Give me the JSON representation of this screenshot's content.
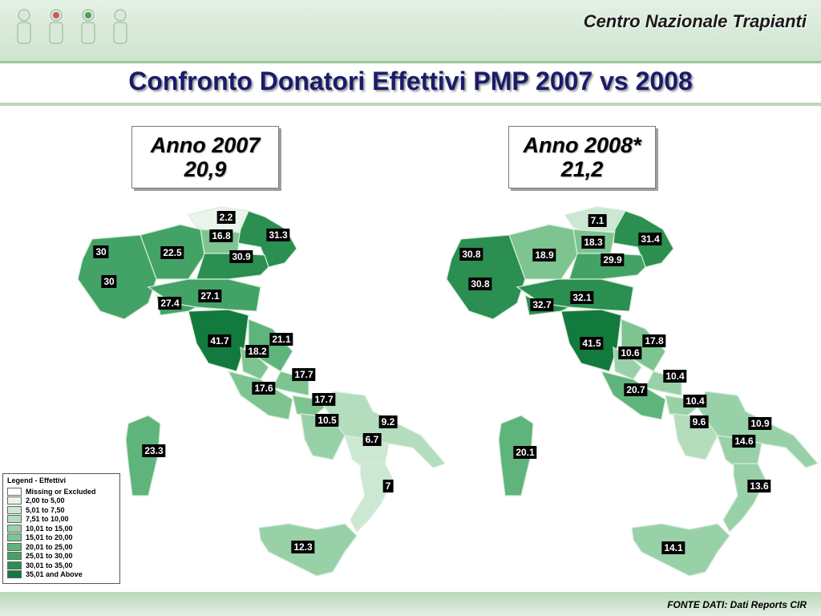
{
  "header": {
    "brand": "Centro Nazionale Trapianti",
    "title": "Confronto Donatori Effettivi PMP 2007 vs 2008"
  },
  "map_left": {
    "year": "Anno 2007",
    "value": "20,9"
  },
  "map_right": {
    "year": "Anno 2008*",
    "value": "21,2"
  },
  "legend": {
    "title": "Legend - Effettivi",
    "items": [
      {
        "label": "Missing or Excluded",
        "color": "#ffffff"
      },
      {
        "label": "2,00 to 5,00",
        "color": "#eaf4ea"
      },
      {
        "label": "5,01 to 7,50",
        "color": "#cde8d2"
      },
      {
        "label": "7,51 to 10,00",
        "color": "#b3ddbd"
      },
      {
        "label": "10,01 to 15,00",
        "color": "#98d1a8"
      },
      {
        "label": "15,01 to 20,00",
        "color": "#7dc491"
      },
      {
        "label": "20,01 to 25,00",
        "color": "#5eb47b"
      },
      {
        "label": "25,01 to 30,00",
        "color": "#43a366"
      },
      {
        "label": "30,01 to 35,00",
        "color": "#2a8f50"
      },
      {
        "label": "35,01 and Above",
        "color": "#137a3d"
      }
    ]
  },
  "footer": {
    "source": "FONTE DATI: Dati Reports CIR"
  },
  "chart_data": [
    {
      "type": "table",
      "title": "Anno 2007",
      "subtitle": "20,9",
      "labels": [
        "2.2",
        "16.8",
        "31.3",
        "30",
        "22.5",
        "30.9",
        "30",
        "27.1",
        "27.4",
        "41.7",
        "21.1",
        "18.2",
        "17.7",
        "17.6",
        "17.7",
        "10.5",
        "9.2",
        "6.7",
        "7",
        "23.3",
        "12.3"
      ],
      "values": [
        2.2,
        16.8,
        31.3,
        30,
        22.5,
        30.9,
        30,
        27.1,
        27.4,
        41.7,
        21.1,
        18.2,
        17.7,
        17.6,
        17.7,
        10.5,
        9.2,
        6.7,
        7,
        23.3,
        12.3
      ]
    },
    {
      "type": "table",
      "title": "Anno 2008*",
      "subtitle": "21,2",
      "labels": [
        "7.1",
        "18.3",
        "31.4",
        "30.8",
        "18.9",
        "29.9",
        "30.8",
        "32.1",
        "32.7",
        "41.5",
        "17.8",
        "10.6",
        "10.4",
        "20.7",
        "10.4",
        "9.6",
        "10.9",
        "14.6",
        "13.6",
        "20.1",
        "14.1"
      ],
      "values": [
        7.1,
        18.3,
        31.4,
        30.8,
        18.9,
        29.9,
        30.8,
        32.1,
        32.7,
        41.5,
        17.8,
        10.6,
        10.4,
        20.7,
        10.4,
        9.6,
        10.9,
        14.6,
        13.6,
        20.1,
        14.1
      ]
    }
  ]
}
